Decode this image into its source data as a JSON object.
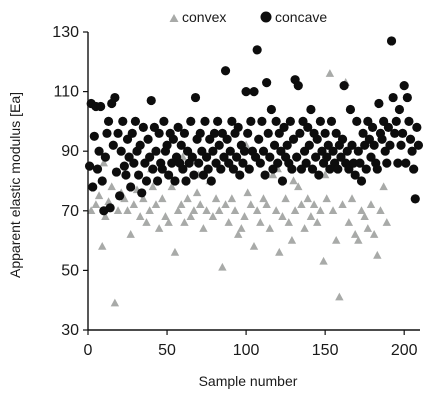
{
  "chart_data": {
    "type": "scatter",
    "title": "",
    "xlabel": "Sample number",
    "ylabel": "Apparent elastic modulus [Ea]",
    "xlim": [
      0,
      210
    ],
    "ylim": [
      30,
      130
    ],
    "xticks": [
      0,
      50,
      100,
      150,
      200
    ],
    "yticks": [
      30,
      50,
      70,
      90,
      110,
      130
    ],
    "grid": false,
    "legend_position": "top",
    "series": [
      {
        "name": "convex",
        "marker": "triangle",
        "color": "#a8aaa8",
        "points": [
          [
            2,
            70
          ],
          [
            5,
            72
          ],
          [
            7,
            75
          ],
          [
            9,
            58
          ],
          [
            11,
            68
          ],
          [
            13,
            73
          ],
          [
            15,
            78
          ],
          [
            17,
            39
          ],
          [
            19,
            70
          ],
          [
            21,
            76
          ],
          [
            23,
            74
          ],
          [
            25,
            70
          ],
          [
            27,
            62
          ],
          [
            29,
            72
          ],
          [
            31,
            77
          ],
          [
            33,
            68
          ],
          [
            35,
            74
          ],
          [
            37,
            66
          ],
          [
            39,
            70
          ],
          [
            41,
            78
          ],
          [
            43,
            72
          ],
          [
            45,
            64
          ],
          [
            47,
            74
          ],
          [
            49,
            68
          ],
          [
            51,
            66
          ],
          [
            53,
            78
          ],
          [
            55,
            56
          ],
          [
            57,
            70
          ],
          [
            59,
            72
          ],
          [
            61,
            66
          ],
          [
            63,
            74
          ],
          [
            65,
            68
          ],
          [
            67,
            70
          ],
          [
            69,
            76
          ],
          [
            71,
            72
          ],
          [
            73,
            64
          ],
          [
            75,
            70
          ],
          [
            77,
            80
          ],
          [
            79,
            68
          ],
          [
            81,
            74
          ],
          [
            83,
            70
          ],
          [
            85,
            51
          ],
          [
            87,
            72
          ],
          [
            89,
            66
          ],
          [
            91,
            74
          ],
          [
            93,
            70
          ],
          [
            95,
            62
          ],
          [
            97,
            64
          ],
          [
            99,
            68
          ],
          [
            101,
            76
          ],
          [
            103,
            72
          ],
          [
            105,
            58
          ],
          [
            107,
            70
          ],
          [
            109,
            66
          ],
          [
            111,
            74
          ],
          [
            113,
            72
          ],
          [
            115,
            64
          ],
          [
            117,
            82
          ],
          [
            119,
            70
          ],
          [
            121,
            56
          ],
          [
            123,
            68
          ],
          [
            125,
            74
          ],
          [
            127,
            66
          ],
          [
            129,
            60
          ],
          [
            131,
            70
          ],
          [
            133,
            78
          ],
          [
            135,
            72
          ],
          [
            137,
            64
          ],
          [
            139,
            74
          ],
          [
            141,
            68
          ],
          [
            143,
            72
          ],
          [
            145,
            66
          ],
          [
            147,
            70
          ],
          [
            149,
            53
          ],
          [
            151,
            74
          ],
          [
            153,
            116
          ],
          [
            155,
            70
          ],
          [
            157,
            60
          ],
          [
            159,
            41
          ],
          [
            161,
            72
          ],
          [
            163,
            113
          ],
          [
            165,
            66
          ],
          [
            167,
            74
          ],
          [
            169,
            62
          ],
          [
            171,
            60
          ],
          [
            173,
            70
          ],
          [
            175,
            68
          ],
          [
            177,
            64
          ],
          [
            179,
            72
          ],
          [
            181,
            62
          ],
          [
            183,
            55
          ],
          [
            185,
            70
          ],
          [
            187,
            78
          ],
          [
            189,
            66
          ],
          [
            30,
            90
          ],
          [
            60,
            88
          ],
          [
            90,
            86
          ],
          [
            120,
            84
          ],
          [
            150,
            82
          ],
          [
            10,
            86
          ],
          [
            40,
            84
          ],
          [
            70,
            82
          ],
          [
            100,
            92
          ],
          [
            130,
            80
          ]
        ]
      },
      {
        "name": "concave",
        "marker": "circle",
        "color": "#0d0d0d",
        "points": [
          [
            1,
            85
          ],
          [
            2,
            106
          ],
          [
            3,
            78
          ],
          [
            4,
            95
          ],
          [
            5,
            105
          ],
          [
            6,
            84
          ],
          [
            7,
            90
          ],
          [
            8,
            105
          ],
          [
            9,
            80
          ],
          [
            10,
            70
          ],
          [
            11,
            88
          ],
          [
            12,
            96
          ],
          [
            13,
            100
          ],
          [
            14,
            71
          ],
          [
            15,
            106
          ],
          [
            16,
            92
          ],
          [
            17,
            108
          ],
          [
            18,
            83
          ],
          [
            19,
            96
          ],
          [
            20,
            75
          ],
          [
            21,
            90
          ],
          [
            22,
            100
          ],
          [
            23,
            85
          ],
          [
            24,
            82
          ],
          [
            25,
            94
          ],
          [
            26,
            88
          ],
          [
            27,
            78
          ],
          [
            28,
            96
          ],
          [
            29,
            86
          ],
          [
            30,
            100
          ],
          [
            31,
            90
          ],
          [
            32,
            82
          ],
          [
            33,
            92
          ],
          [
            34,
            76
          ],
          [
            35,
            98
          ],
          [
            36,
            86
          ],
          [
            37,
            80
          ],
          [
            38,
            94
          ],
          [
            39,
            88
          ],
          [
            40,
            107
          ],
          [
            41,
            84
          ],
          [
            42,
            98
          ],
          [
            43,
            90
          ],
          [
            44,
            80
          ],
          [
            45,
            96
          ],
          [
            46,
            86
          ],
          [
            47,
            84
          ],
          [
            48,
            100
          ],
          [
            49,
            90
          ],
          [
            50,
            92
          ],
          [
            51,
            82
          ],
          [
            52,
            96
          ],
          [
            53,
            86
          ],
          [
            54,
            94
          ],
          [
            55,
            80
          ],
          [
            56,
            88
          ],
          [
            57,
            98
          ],
          [
            58,
            86
          ],
          [
            59,
            92
          ],
          [
            60,
            84
          ],
          [
            61,
            96
          ],
          [
            62,
            80
          ],
          [
            63,
            90
          ],
          [
            64,
            86
          ],
          [
            65,
            100
          ],
          [
            66,
            88
          ],
          [
            67,
            82
          ],
          [
            68,
            108
          ],
          [
            69,
            94
          ],
          [
            70,
            86
          ],
          [
            71,
            96
          ],
          [
            72,
            90
          ],
          [
            73,
            82
          ],
          [
            74,
            100
          ],
          [
            75,
            88
          ],
          [
            76,
            84
          ],
          [
            77,
            94
          ],
          [
            78,
            80
          ],
          [
            79,
            90
          ],
          [
            80,
            96
          ],
          [
            81,
            86
          ],
          [
            82,
            100
          ],
          [
            83,
            92
          ],
          [
            84,
            84
          ],
          [
            85,
            96
          ],
          [
            86,
            88
          ],
          [
            87,
            117
          ],
          [
            88,
            94
          ],
          [
            89,
            86
          ],
          [
            90,
            90
          ],
          [
            91,
            100
          ],
          [
            92,
            84
          ],
          [
            93,
            96
          ],
          [
            94,
            88
          ],
          [
            95,
            98
          ],
          [
            96,
            82
          ],
          [
            97,
            92
          ],
          [
            98,
            86
          ],
          [
            99,
            90
          ],
          [
            100,
            110
          ],
          [
            101,
            96
          ],
          [
            102,
            84
          ],
          [
            103,
            100
          ],
          [
            104,
            90
          ],
          [
            105,
            110
          ],
          [
            106,
            88
          ],
          [
            107,
            124
          ],
          [
            108,
            94
          ],
          [
            109,
            86
          ],
          [
            110,
            100
          ],
          [
            111,
            90
          ],
          [
            112,
            82
          ],
          [
            113,
            113
          ],
          [
            114,
            96
          ],
          [
            115,
            88
          ],
          [
            116,
            104
          ],
          [
            117,
            84
          ],
          [
            118,
            92
          ],
          [
            119,
            100
          ],
          [
            120,
            86
          ],
          [
            121,
            96
          ],
          [
            122,
            90
          ],
          [
            123,
            80
          ],
          [
            124,
            98
          ],
          [
            125,
            88
          ],
          [
            126,
            92
          ],
          [
            127,
            86
          ],
          [
            128,
            100
          ],
          [
            129,
            84
          ],
          [
            130,
            94
          ],
          [
            131,
            114
          ],
          [
            132,
            88
          ],
          [
            133,
            112
          ],
          [
            134,
            96
          ],
          [
            135,
            84
          ],
          [
            136,
            100
          ],
          [
            137,
            90
          ],
          [
            138,
            86
          ],
          [
            139,
            98
          ],
          [
            140,
            92
          ],
          [
            141,
            104
          ],
          [
            142,
            84
          ],
          [
            143,
            96
          ],
          [
            144,
            88
          ],
          [
            145,
            94
          ],
          [
            146,
            82
          ],
          [
            147,
            100
          ],
          [
            148,
            90
          ],
          [
            149,
            86
          ],
          [
            150,
            96
          ],
          [
            151,
            88
          ],
          [
            152,
            92
          ],
          [
            153,
            84
          ],
          [
            154,
            100
          ],
          [
            155,
            90
          ],
          [
            156,
            86
          ],
          [
            157,
            96
          ],
          [
            158,
            84
          ],
          [
            159,
            92
          ],
          [
            160,
            88
          ],
          [
            161,
            94
          ],
          [
            162,
            112
          ],
          [
            163,
            86
          ],
          [
            164,
            90
          ],
          [
            165,
            84
          ],
          [
            166,
            104
          ],
          [
            167,
            92
          ],
          [
            168,
            86
          ],
          [
            169,
            82
          ],
          [
            170,
            100
          ],
          [
            171,
            90
          ],
          [
            172,
            86
          ],
          [
            173,
            80
          ],
          [
            174,
            96
          ],
          [
            175,
            92
          ],
          [
            176,
            84
          ],
          [
            177,
            100
          ],
          [
            178,
            94
          ],
          [
            179,
            88
          ],
          [
            180,
            98
          ],
          [
            181,
            92
          ],
          [
            182,
            86
          ],
          [
            183,
            84
          ],
          [
            184,
            106
          ],
          [
            185,
            96
          ],
          [
            186,
            94
          ],
          [
            187,
            100
          ],
          [
            188,
            90
          ],
          [
            189,
            86
          ],
          [
            190,
            98
          ],
          [
            191,
            92
          ],
          [
            192,
            127
          ],
          [
            193,
            108
          ],
          [
            194,
            96
          ],
          [
            195,
            100
          ],
          [
            196,
            86
          ],
          [
            197,
            104
          ],
          [
            198,
            92
          ],
          [
            199,
            96
          ],
          [
            200,
            112
          ],
          [
            201,
            86
          ],
          [
            202,
            108
          ],
          [
            203,
            100
          ],
          [
            204,
            94
          ],
          [
            205,
            90
          ],
          [
            206,
            84
          ],
          [
            207,
            74
          ],
          [
            208,
            98
          ],
          [
            209,
            92
          ]
        ]
      }
    ]
  }
}
